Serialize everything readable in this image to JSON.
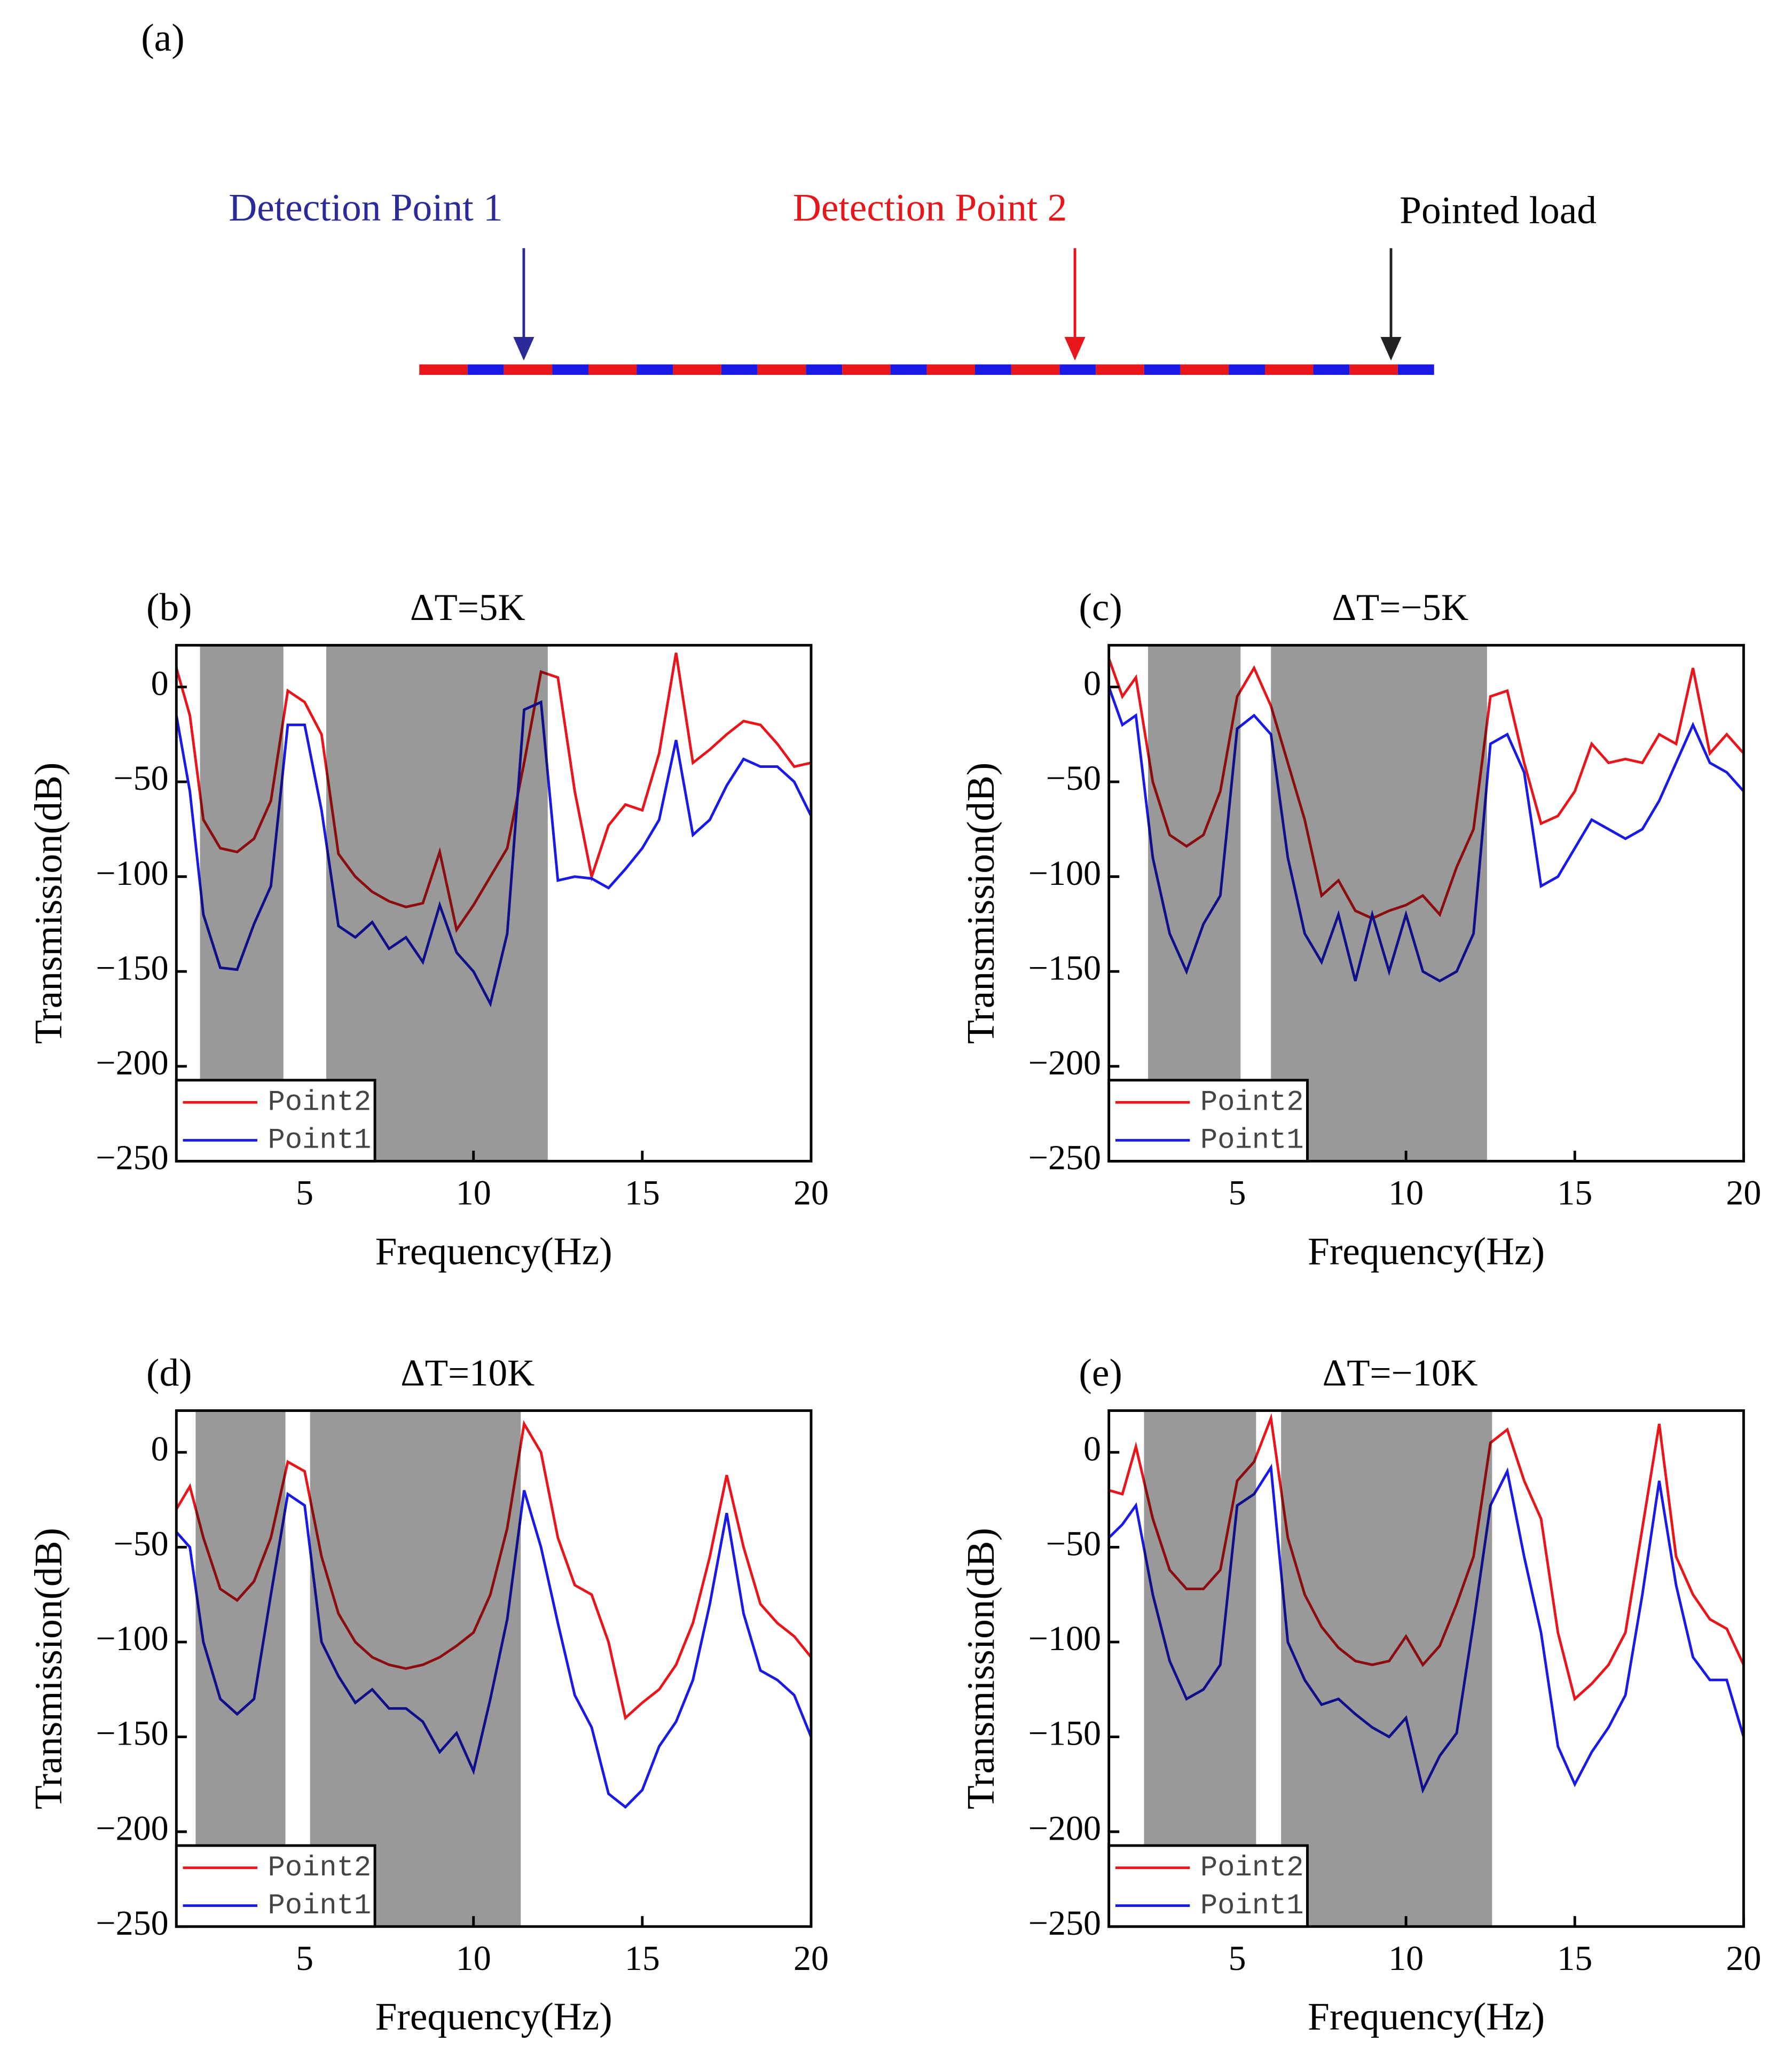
{
  "diagram": {
    "panel": "(a)",
    "label_point1": "Detection Point 1",
    "label_point2": "Detection Point 2",
    "label_load": "Pointed load"
  },
  "chart_data": [
    {
      "type": "line",
      "panel": "(b)",
      "title": "ΔT=5K",
      "xlabel": "Frequency(Hz)",
      "ylabel": "Transmission(dB)",
      "x": [
        1.2,
        1.6,
        2,
        2.5,
        3,
        3.5,
        4,
        4.5,
        5,
        5.5,
        6,
        6.5,
        7,
        7.5,
        8,
        8.5,
        9,
        9.5,
        10,
        10.5,
        11,
        11.5,
        12,
        12.5,
        13,
        13.5,
        14,
        14.5,
        15,
        15.5,
        16,
        16.5,
        17,
        17.5,
        18,
        18.5,
        19,
        19.5,
        20
      ],
      "series": [
        {
          "name": "Point2",
          "color": "#e8161b",
          "values": [
            10,
            -15,
            -70,
            -85,
            -87,
            -80,
            -60,
            -2,
            -8,
            -25,
            -88,
            -100,
            -108,
            -113,
            -116,
            -114,
            -87,
            -128,
            -115,
            -100,
            -85,
            -40,
            8,
            5,
            -55,
            -100,
            -73,
            -62,
            -65,
            -35,
            18,
            -40,
            -33,
            -25,
            -18,
            -20,
            -30,
            -42,
            -40
          ]
        },
        {
          "name": "Point1",
          "color": "#1a1ae6",
          "values": [
            -15,
            -55,
            -120,
            -148,
            -149,
            -125,
            -105,
            -20,
            -20,
            -65,
            -126,
            -132,
            -124,
            -138,
            -132,
            -145,
            -115,
            -140,
            -150,
            -167,
            -130,
            -12,
            -8,
            -102,
            -100,
            -101,
            -106,
            -96,
            -85,
            -70,
            -28,
            -78,
            -70,
            -52,
            -38,
            -42,
            -42,
            -50,
            -68
          ]
        }
      ],
      "bands": [
        [
          1.9,
          4.37
        ],
        [
          5.64,
          12.2
        ]
      ],
      "xlim": [
        1.2,
        20
      ],
      "ylim": [
        -250,
        22
      ],
      "xticks": [
        5,
        10,
        15,
        20
      ],
      "yticks": [
        {
          "value": -250,
          "label": "−250"
        },
        {
          "value": -200,
          "label": "−200"
        },
        {
          "value": -150,
          "label": "−150"
        },
        {
          "value": -100,
          "label": "−100"
        },
        {
          "value": -50,
          "label": "−50"
        },
        0
      ],
      "legend": "lower left"
    },
    {
      "type": "line",
      "panel": "(c)",
      "title": "ΔT=−5K",
      "xlabel": "Frequency(Hz)",
      "ylabel": "Transmission(dB)",
      "x": [
        1.2,
        1.6,
        2,
        2.5,
        3,
        3.5,
        4,
        4.5,
        5,
        5.5,
        6,
        6.5,
        7,
        7.5,
        8,
        8.5,
        9,
        9.5,
        10,
        10.5,
        11,
        11.5,
        12,
        12.5,
        13,
        13.5,
        14,
        14.5,
        15,
        15.5,
        16,
        16.5,
        17,
        17.5,
        18,
        18.5,
        19,
        19.5,
        20
      ],
      "series": [
        {
          "name": "Point2",
          "color": "#e8161b",
          "values": [
            15,
            -5,
            5,
            -50,
            -78,
            -84,
            -78,
            -55,
            -5,
            10,
            -10,
            -40,
            -70,
            -110,
            -102,
            -118,
            -122,
            -118,
            -115,
            -110,
            -120,
            -95,
            -75,
            -5,
            -2,
            -40,
            -72,
            -68,
            -55,
            -30,
            -40,
            -38,
            -40,
            -25,
            -30,
            10,
            -35,
            -25,
            -35
          ]
        },
        {
          "name": "Point1",
          "color": "#1a1ae6",
          "values": [
            0,
            -20,
            -15,
            -90,
            -130,
            -150,
            -125,
            -110,
            -22,
            -15,
            -25,
            -90,
            -130,
            -145,
            -120,
            -155,
            -120,
            -150,
            -120,
            -150,
            -155,
            -150,
            -130,
            -30,
            -25,
            -45,
            -105,
            -100,
            -85,
            -70,
            -75,
            -80,
            -75,
            -60,
            -40,
            -20,
            -40,
            -45,
            -55
          ]
        }
      ],
      "bands": [
        [
          2.36,
          5.1
        ],
        [
          6.0,
          12.4
        ]
      ],
      "xlim": [
        1.2,
        20
      ],
      "ylim": [
        -250,
        22
      ],
      "xticks": [
        5,
        10,
        15,
        20
      ],
      "yticks": [
        {
          "value": -250,
          "label": "−250"
        },
        {
          "value": -200,
          "label": "−200"
        },
        {
          "value": -150,
          "label": "−150"
        },
        {
          "value": -100,
          "label": "−100"
        },
        {
          "value": -50,
          "label": "−50"
        },
        0
      ],
      "legend": "lower left"
    },
    {
      "type": "line",
      "panel": "(d)",
      "title": "ΔT=10K",
      "xlabel": "Frequency(Hz)",
      "ylabel": "Transmission(dB)",
      "x": [
        1.2,
        1.6,
        2,
        2.5,
        3,
        3.5,
        4,
        4.5,
        5,
        5.5,
        6,
        6.5,
        7,
        7.5,
        8,
        8.5,
        9,
        9.5,
        10,
        10.5,
        11,
        11.5,
        12,
        12.5,
        13,
        13.5,
        14,
        14.5,
        15,
        15.5,
        16,
        16.5,
        17,
        17.5,
        18,
        18.5,
        19,
        19.5,
        20
      ],
      "series": [
        {
          "name": "Point2",
          "color": "#e8161b",
          "values": [
            -30,
            -18,
            -45,
            -72,
            -78,
            -68,
            -45,
            -5,
            -10,
            -55,
            -85,
            -100,
            -108,
            -112,
            -114,
            -112,
            -108,
            -102,
            -95,
            -75,
            -40,
            15,
            0,
            -45,
            -70,
            -75,
            -100,
            -140,
            -132,
            -125,
            -112,
            -90,
            -55,
            -12,
            -50,
            -80,
            -90,
            -97,
            -108
          ]
        },
        {
          "name": "Point1",
          "color": "#1a1ae6",
          "values": [
            -42,
            -50,
            -100,
            -130,
            -138,
            -130,
            -75,
            -22,
            -28,
            -100,
            -118,
            -132,
            -125,
            -135,
            -135,
            -142,
            -158,
            -148,
            -168,
            -130,
            -88,
            -20,
            -50,
            -90,
            -128,
            -145,
            -180,
            -187,
            -178,
            -155,
            -142,
            -120,
            -80,
            -32,
            -85,
            -115,
            -120,
            -128,
            -150
          ]
        }
      ],
      "bands": [
        [
          1.77,
          4.43
        ],
        [
          5.16,
          11.4
        ]
      ],
      "xlim": [
        1.2,
        20
      ],
      "ylim": [
        -250,
        22
      ],
      "xticks": [
        5,
        10,
        15,
        20
      ],
      "yticks": [
        {
          "value": -250,
          "label": "−250"
        },
        {
          "value": -200,
          "label": "−200"
        },
        {
          "value": -150,
          "label": "−150"
        },
        {
          "value": -100,
          "label": "−100"
        },
        {
          "value": -50,
          "label": "−50"
        },
        0
      ],
      "legend": "lower left"
    },
    {
      "type": "line",
      "panel": "(e)",
      "title": "ΔT=−10K",
      "xlabel": "Frequency(Hz)",
      "ylabel": "Transmission(dB)",
      "x": [
        1.2,
        1.6,
        2,
        2.5,
        3,
        3.5,
        4,
        4.5,
        5,
        5.5,
        6,
        6.5,
        7,
        7.5,
        8,
        8.5,
        9,
        9.5,
        10,
        10.5,
        11,
        11.5,
        12,
        12.5,
        13,
        13.5,
        14,
        14.5,
        15,
        15.5,
        16,
        16.5,
        17,
        17.5,
        18,
        18.5,
        19,
        19.5,
        20
      ],
      "series": [
        {
          "name": "Point2",
          "color": "#e8161b",
          "values": [
            -20,
            -22,
            3,
            -35,
            -62,
            -72,
            -72,
            -62,
            -15,
            -5,
            18,
            -45,
            -75,
            -92,
            -103,
            -110,
            -112,
            -110,
            -97,
            -112,
            -102,
            -80,
            -55,
            5,
            12,
            -15,
            -35,
            -95,
            -130,
            -122,
            -112,
            -95,
            -40,
            15,
            -55,
            -75,
            -88,
            -93,
            -112
          ]
        },
        {
          "name": "Point1",
          "color": "#1a1ae6",
          "values": [
            -45,
            -38,
            -28,
            -75,
            -110,
            -130,
            -125,
            -112,
            -28,
            -22,
            -8,
            -100,
            -120,
            -133,
            -130,
            -138,
            -145,
            -150,
            -140,
            -178,
            -160,
            -148,
            -90,
            -28,
            -10,
            -55,
            -95,
            -155,
            -175,
            -158,
            -145,
            -128,
            -75,
            -15,
            -70,
            -108,
            -120,
            -120,
            -150
          ]
        }
      ],
      "bands": [
        [
          2.24,
          5.56
        ],
        [
          6.3,
          12.55
        ]
      ],
      "xlim": [
        1.2,
        20
      ],
      "ylim": [
        -250,
        22
      ],
      "xticks": [
        5,
        10,
        15,
        20
      ],
      "yticks": [
        {
          "value": -250,
          "label": "−250"
        },
        {
          "value": -200,
          "label": "−200"
        },
        {
          "value": -150,
          "label": "−150"
        },
        {
          "value": -100,
          "label": "−100"
        },
        {
          "value": -50,
          "label": "−50"
        },
        0
      ],
      "legend": "lower left"
    }
  ]
}
